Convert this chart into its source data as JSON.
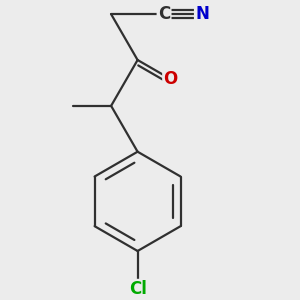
{
  "bg_color": "#ececec",
  "atom_colors": {
    "C": "#303030",
    "N": "#0000cc",
    "O": "#cc0000",
    "Cl": "#00aa00"
  },
  "bond_color": "#303030",
  "bond_width": 1.6,
  "dbs": 0.022,
  "triple_sep": 0.022,
  "figsize": [
    3.0,
    3.0
  ],
  "dpi": 100,
  "font_size": 12
}
